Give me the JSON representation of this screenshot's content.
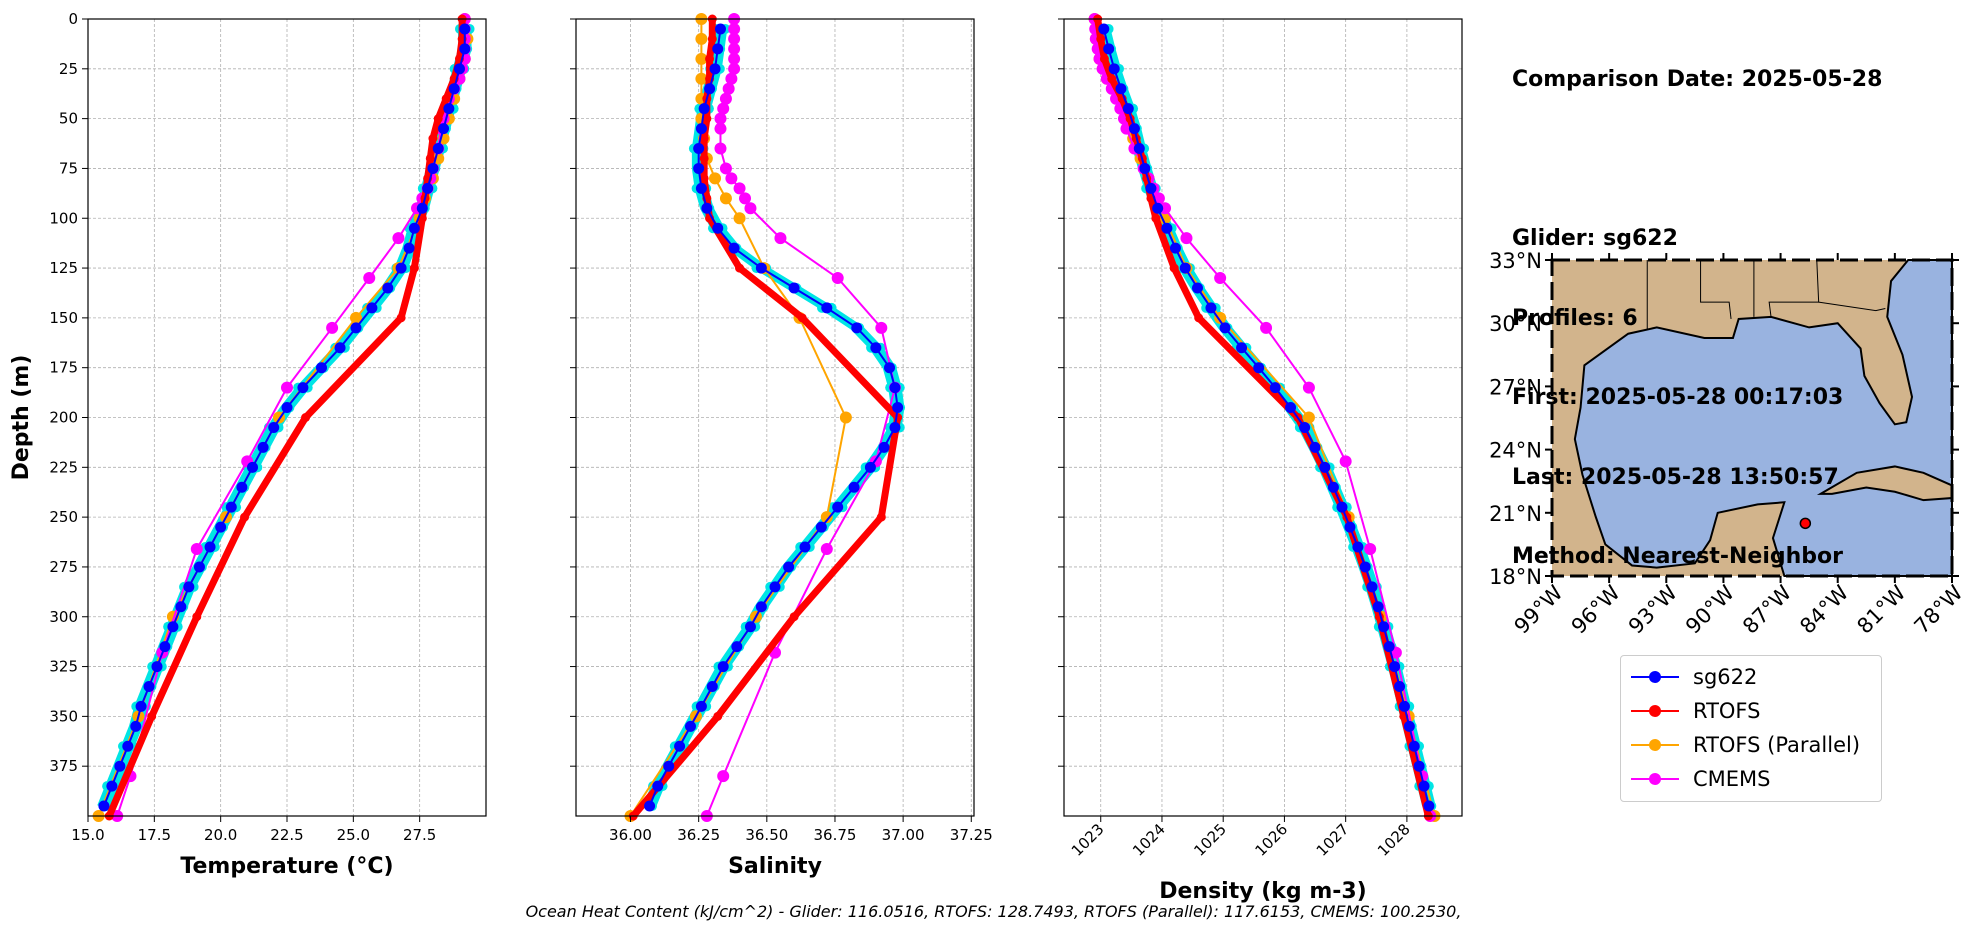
{
  "info": {
    "comparison_date": "Comparison Date: 2025-05-28",
    "glider": "Glider: sg622",
    "profiles": "Profiles: 6",
    "first": "First: 2025-05-28 00:17:03",
    "last": "Last: 2025-05-28 13:50:57",
    "method": "Method: Nearest-Neighbor"
  },
  "footer": "Ocean Heat Content (kJ/cm^2) - Glider: 116.0516,  RTOFS: 128.7493,  RTOFS (Parallel): 117.6153,  CMEMS: 100.2530,",
  "legend": [
    {
      "label": "sg622",
      "color": "#0000ff"
    },
    {
      "label": "RTOFS",
      "color": "#ff0000"
    },
    {
      "label": "RTOFS (Parallel)",
      "color": "#ffa500"
    },
    {
      "label": "CMEMS",
      "color": "#ff00ff"
    }
  ],
  "colors": {
    "glider_profiles": "#00e5e5",
    "grid": "#b0b0b0",
    "land": "#d2b48c",
    "ocean": "#99b3e0",
    "marker": "#ff0000"
  },
  "chart_data": [
    {
      "type": "line",
      "xlabel": "Temperature (°C)",
      "ylabel": "Depth (m)",
      "xlim": [
        15.0,
        30.0
      ],
      "ylim": [
        400,
        0
      ],
      "xticks": [
        "15.0",
        "17.5",
        "20.0",
        "22.5",
        "25.0",
        "27.5"
      ],
      "yticks": [
        "0",
        "25",
        "50",
        "75",
        "100",
        "125",
        "150",
        "175",
        "200",
        "225",
        "250",
        "275",
        "300",
        "325",
        "350",
        "375"
      ],
      "grid": true,
      "series": [
        {
          "name": "sg622",
          "depth": [
            5,
            15,
            25,
            35,
            45,
            55,
            65,
            75,
            85,
            95,
            105,
            115,
            125,
            135,
            145,
            155,
            165,
            175,
            185,
            195,
            205,
            215,
            225,
            235,
            245,
            255,
            265,
            275,
            285,
            295,
            305,
            315,
            325,
            335,
            345,
            355,
            365,
            375,
            385,
            395
          ],
          "values": [
            29.2,
            29.2,
            29.0,
            28.8,
            28.6,
            28.4,
            28.2,
            28.0,
            27.8,
            27.6,
            27.3,
            27.1,
            26.8,
            26.3,
            25.7,
            25.1,
            24.5,
            23.8,
            23.1,
            22.5,
            22.0,
            21.6,
            21.2,
            20.8,
            20.4,
            20.0,
            19.6,
            19.2,
            18.8,
            18.5,
            18.2,
            17.9,
            17.6,
            17.3,
            17.0,
            16.8,
            16.5,
            16.2,
            15.9,
            15.6
          ]
        },
        {
          "name": "RTOFS",
          "depth": [
            0,
            10,
            20,
            30,
            40,
            50,
            60,
            70,
            80,
            90,
            100,
            125,
            150,
            200,
            250,
            300,
            350,
            400
          ],
          "values": [
            29.1,
            29.1,
            29.0,
            28.8,
            28.5,
            28.2,
            28.0,
            27.9,
            27.8,
            27.7,
            27.6,
            27.3,
            26.8,
            23.2,
            20.9,
            19.1,
            17.4,
            15.8
          ]
        },
        {
          "name": "RTOFS (Parallel)",
          "depth": [
            0,
            10,
            20,
            30,
            40,
            50,
            60,
            70,
            80,
            90,
            100,
            125,
            150,
            200,
            250,
            300,
            350,
            400
          ],
          "values": [
            29.2,
            29.3,
            29.2,
            29.0,
            28.8,
            28.6,
            28.4,
            28.2,
            28.0,
            27.7,
            27.5,
            26.7,
            25.1,
            22.2,
            20.2,
            18.2,
            16.9,
            15.4
          ]
        },
        {
          "name": "CMEMS",
          "depth": [
            0,
            5,
            10,
            15,
            20,
            25,
            30,
            35,
            40,
            45,
            50,
            55,
            65,
            75,
            80,
            85,
            90,
            95,
            110,
            130,
            155,
            185,
            222,
            266,
            318,
            380,
            400
          ],
          "values": [
            29.2,
            29.2,
            29.2,
            29.2,
            29.2,
            29.1,
            29.0,
            28.8,
            28.6,
            28.5,
            28.4,
            28.3,
            28.2,
            28.0,
            27.9,
            27.8,
            27.6,
            27.4,
            26.7,
            25.6,
            24.2,
            22.5,
            21.0,
            19.1,
            17.8,
            16.6,
            16.1
          ]
        }
      ]
    },
    {
      "type": "line",
      "xlabel": "Salinity",
      "xlim": [
        35.8,
        37.26
      ],
      "ylim": [
        400,
        0
      ],
      "xticks": [
        "36.00",
        "36.25",
        "36.50",
        "36.75",
        "37.00",
        "37.25"
      ],
      "grid": true,
      "series": [
        {
          "name": "sg622",
          "depth": [
            5,
            15,
            25,
            35,
            45,
            55,
            65,
            75,
            85,
            95,
            105,
            115,
            125,
            135,
            145,
            155,
            165,
            175,
            185,
            195,
            205,
            215,
            225,
            235,
            245,
            255,
            265,
            275,
            285,
            295,
            305,
            315,
            325,
            335,
            345,
            355,
            365,
            375,
            385,
            395
          ],
          "values": [
            36.33,
            36.32,
            36.31,
            36.29,
            36.27,
            36.26,
            36.25,
            36.25,
            36.26,
            36.28,
            36.32,
            36.38,
            36.48,
            36.6,
            36.72,
            36.83,
            36.9,
            36.95,
            36.97,
            36.98,
            36.97,
            36.93,
            36.88,
            36.82,
            36.76,
            36.7,
            36.64,
            36.58,
            36.53,
            36.48,
            36.44,
            36.39,
            36.34,
            36.3,
            36.26,
            36.22,
            36.18,
            36.14,
            36.1,
            36.07
          ]
        },
        {
          "name": "RTOFS",
          "depth": [
            0,
            10,
            20,
            30,
            40,
            50,
            60,
            70,
            80,
            90,
            100,
            125,
            150,
            200,
            250,
            300,
            350,
            400
          ],
          "values": [
            36.3,
            36.3,
            36.29,
            36.29,
            36.28,
            36.28,
            36.27,
            36.27,
            36.27,
            36.28,
            36.29,
            36.4,
            36.63,
            36.98,
            36.92,
            36.6,
            36.32,
            36.01
          ]
        },
        {
          "name": "RTOFS (Parallel)",
          "depth": [
            0,
            10,
            20,
            30,
            40,
            50,
            60,
            70,
            80,
            90,
            100,
            125,
            150,
            200,
            250,
            300,
            350,
            400
          ],
          "values": [
            36.26,
            36.26,
            36.26,
            36.26,
            36.26,
            36.26,
            36.27,
            36.28,
            36.31,
            36.35,
            36.4,
            36.49,
            36.62,
            36.79,
            36.72,
            36.46,
            36.24,
            36.0
          ]
        },
        {
          "name": "CMEMS",
          "depth": [
            0,
            5,
            10,
            15,
            20,
            25,
            30,
            35,
            40,
            45,
            50,
            55,
            65,
            75,
            80,
            85,
            90,
            95,
            110,
            130,
            155,
            185,
            222,
            266,
            318,
            380,
            400
          ],
          "values": [
            36.38,
            36.38,
            36.38,
            36.38,
            36.38,
            36.38,
            36.37,
            36.36,
            36.35,
            36.34,
            36.33,
            36.33,
            36.33,
            36.35,
            36.37,
            36.4,
            36.42,
            36.44,
            36.55,
            36.76,
            36.92,
            36.97,
            36.9,
            36.72,
            36.53,
            36.34,
            36.28
          ]
        }
      ]
    },
    {
      "type": "line",
      "xlabel": "Density (kg m-3)",
      "xlim": [
        1022.4,
        1028.9
      ],
      "ylim": [
        400,
        0
      ],
      "xticks": [
        "1023",
        "1024",
        "1025",
        "1026",
        "1027",
        "1028"
      ],
      "grid": true,
      "series": [
        {
          "name": "sg622",
          "depth": [
            5,
            15,
            25,
            35,
            45,
            55,
            65,
            75,
            85,
            95,
            105,
            115,
            125,
            135,
            145,
            155,
            165,
            175,
            185,
            195,
            205,
            215,
            225,
            235,
            245,
            255,
            265,
            275,
            285,
            295,
            305,
            315,
            325,
            335,
            345,
            355,
            365,
            375,
            385,
            395
          ],
          "values": [
            1023.05,
            1023.13,
            1023.22,
            1023.33,
            1023.45,
            1023.55,
            1023.63,
            1023.72,
            1023.82,
            1023.93,
            1024.08,
            1024.22,
            1024.38,
            1024.58,
            1024.8,
            1025.03,
            1025.3,
            1025.58,
            1025.85,
            1026.1,
            1026.33,
            1026.5,
            1026.66,
            1026.8,
            1026.94,
            1027.07,
            1027.2,
            1027.32,
            1027.43,
            1027.53,
            1027.62,
            1027.71,
            1027.8,
            1027.88,
            1027.96,
            1028.04,
            1028.12,
            1028.2,
            1028.28,
            1028.36
          ]
        },
        {
          "name": "RTOFS",
          "depth": [
            0,
            10,
            20,
            30,
            40,
            50,
            60,
            70,
            80,
            90,
            100,
            125,
            150,
            200,
            250,
            300,
            350,
            400
          ],
          "values": [
            1022.95,
            1023.0,
            1023.06,
            1023.18,
            1023.35,
            1023.48,
            1023.58,
            1023.68,
            1023.75,
            1023.82,
            1023.9,
            1024.2,
            1024.6,
            1026.22,
            1027.02,
            1027.55,
            1027.95,
            1028.35
          ]
        },
        {
          "name": "RTOFS (Parallel)",
          "depth": [
            0,
            10,
            20,
            30,
            40,
            50,
            60,
            70,
            80,
            90,
            100,
            125,
            150,
            200,
            250,
            300,
            350,
            400
          ],
          "values": [
            1022.9,
            1022.92,
            1022.98,
            1023.1,
            1023.28,
            1023.42,
            1023.53,
            1023.65,
            1023.78,
            1023.92,
            1024.05,
            1024.4,
            1024.95,
            1026.4,
            1027.05,
            1027.58,
            1028.03,
            1028.45
          ]
        },
        {
          "name": "CMEMS",
          "depth": [
            0,
            5,
            10,
            15,
            20,
            25,
            30,
            35,
            40,
            45,
            50,
            55,
            65,
            75,
            80,
            85,
            90,
            95,
            110,
            130,
            155,
            185,
            222,
            266,
            318,
            380,
            400
          ],
          "values": [
            1022.9,
            1022.91,
            1022.92,
            1022.95,
            1022.98,
            1023.03,
            1023.1,
            1023.18,
            1023.25,
            1023.32,
            1023.38,
            1023.42,
            1023.55,
            1023.7,
            1023.78,
            1023.86,
            1023.95,
            1024.05,
            1024.4,
            1024.95,
            1025.7,
            1026.4,
            1027.0,
            1027.4,
            1027.82,
            1028.25,
            1028.38
          ]
        }
      ]
    }
  ],
  "map": {
    "lat_ticks": [
      "33°N",
      "30°N",
      "27°N",
      "24°N",
      "21°N",
      "18°N"
    ],
    "lon_ticks": [
      "99°W",
      "96°W",
      "93°W",
      "90°W",
      "87°W",
      "84°W",
      "81°W",
      "78°W"
    ],
    "extent": {
      "lon": [
        -99,
        -78
      ],
      "lat": [
        18,
        33
      ]
    },
    "glider_position": {
      "lon": -85.7,
      "lat": 20.5
    }
  }
}
